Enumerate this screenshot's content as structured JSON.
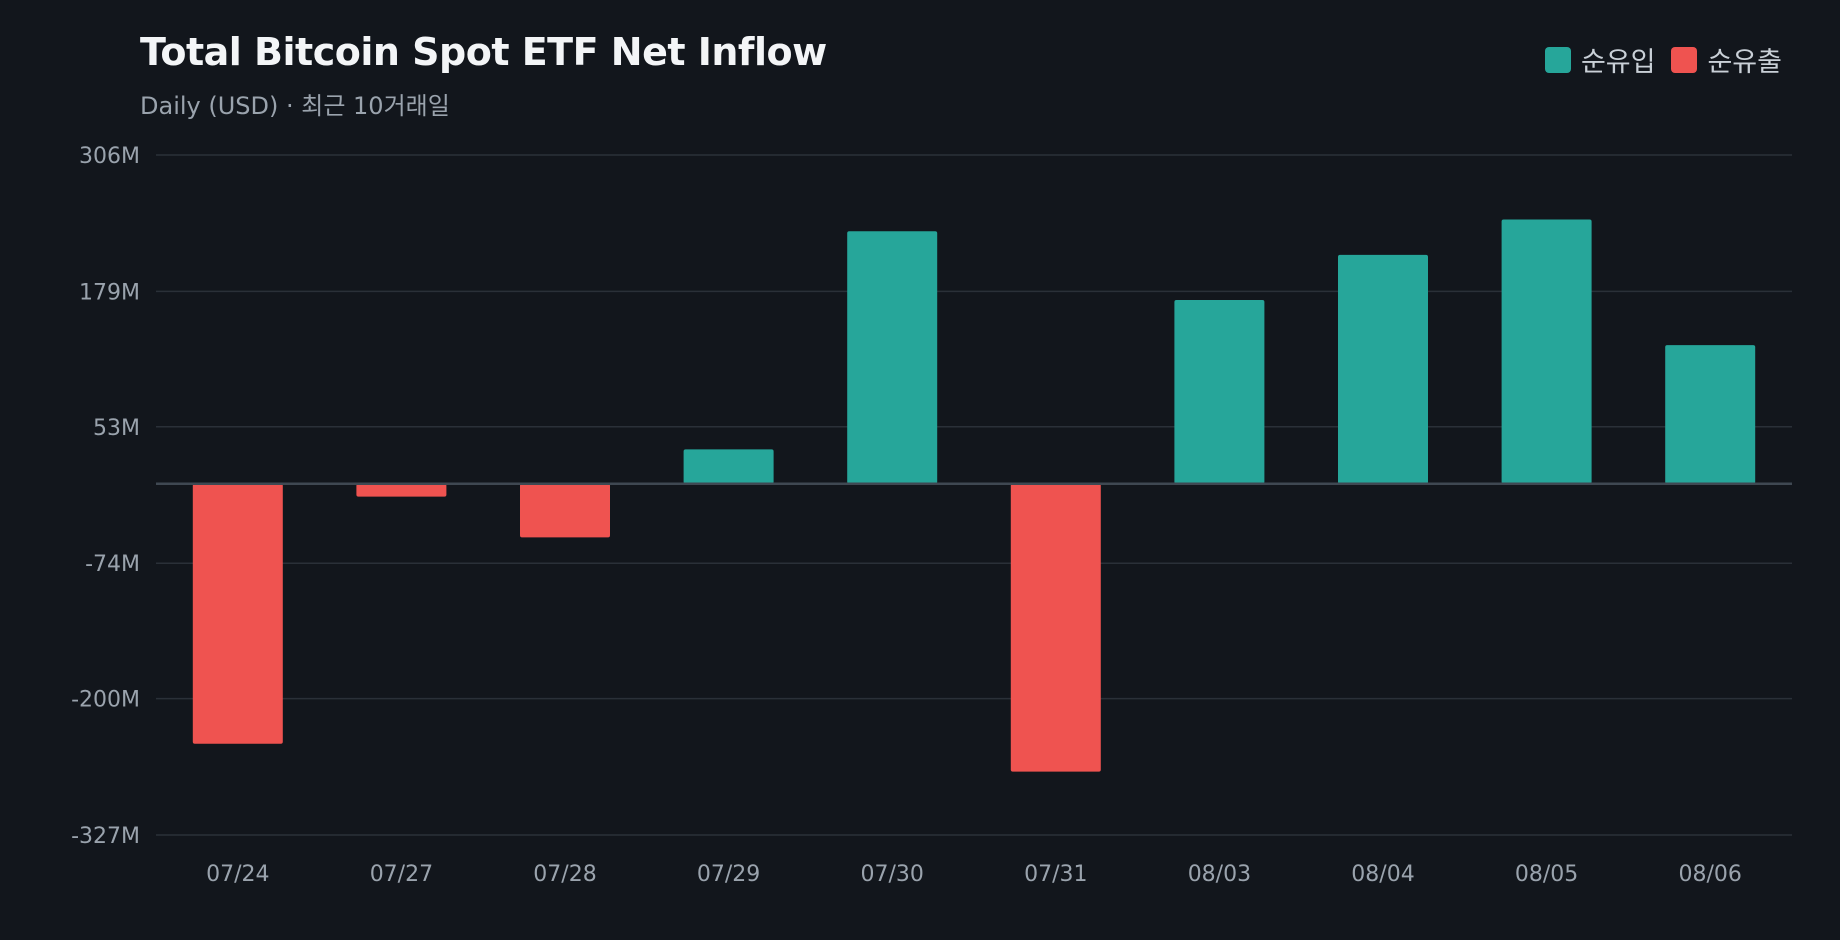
{
  "chart_data": {
    "type": "bar",
    "title": "Total Bitcoin Spot ETF Net Inflow",
    "subtitle": "Daily (USD) · 최근 10거래일",
    "categories": [
      "07/24",
      "07/27",
      "07/28",
      "07/29",
      "07/30",
      "07/31",
      "08/03",
      "08/04",
      "08/05",
      "08/06"
    ],
    "values": [
      -242,
      -12,
      -50,
      32,
      235,
      -268,
      171,
      213,
      246,
      129
    ],
    "unit": "M USD",
    "ylim": [
      -327,
      306
    ],
    "yticks": [
      306,
      179,
      53,
      -74,
      -200,
      -327
    ],
    "ytick_labels": [
      "306M",
      "179M",
      "53M",
      "-74M",
      "-200M",
      "-327M"
    ],
    "grid": true,
    "legend": {
      "position": "top-right",
      "entries": [
        {
          "label": "순유입",
          "color": "#26a69a"
        },
        {
          "label": "순유출",
          "color": "#ef5350"
        }
      ]
    },
    "colors": {
      "positive": "#26a69a",
      "negative": "#ef5350",
      "grid": "#2a3038",
      "zero_line": "#3f4852",
      "background": "#12161c"
    }
  }
}
